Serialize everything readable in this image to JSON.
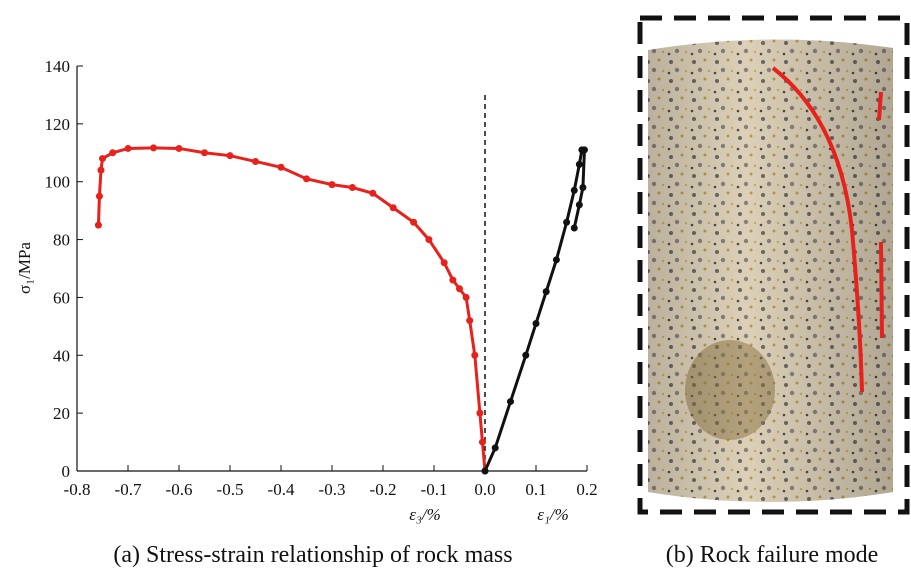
{
  "chart_data": {
    "type": "line",
    "ylabel": "σ₁/MPa",
    "xlabels": [
      "ε₃/%",
      "ε₁/%"
    ],
    "xlim": [
      -0.8,
      0.2
    ],
    "ylim": [
      0,
      140
    ],
    "xticks": [
      -0.8,
      -0.7,
      -0.6,
      -0.5,
      -0.4,
      -0.3,
      -0.2,
      -0.1,
      {
        "value": 0,
        "label": "0.0"
      },
      0.1,
      0.2
    ],
    "yticks": [
      0,
      20,
      40,
      60,
      80,
      100,
      120,
      140
    ],
    "series": [
      {
        "color": "#e8211c",
        "x": [
          0,
          -0.005,
          -0.01,
          -0.02,
          -0.03,
          -0.037,
          -0.05,
          -0.063,
          -0.08,
          -0.11,
          -0.14,
          -0.18,
          -0.22,
          -0.26,
          -0.3,
          -0.35,
          -0.4,
          -0.45,
          -0.5,
          -0.55,
          -0.6,
          -0.65,
          -0.7,
          -0.73,
          -0.75,
          -0.753,
          -0.756,
          -0.758
        ],
        "values": [
          0,
          10,
          20,
          40,
          52,
          60,
          63,
          66,
          72,
          80,
          86,
          91,
          96,
          98,
          99,
          101,
          105,
          107,
          109,
          110,
          111.5,
          111.7,
          111.5,
          110,
          108,
          104,
          95,
          85
        ]
      },
      {
        "color": "#111111",
        "x": [
          0,
          0.02,
          0.05,
          0.08,
          0.1,
          0.12,
          0.14,
          0.16,
          0.175,
          0.185,
          0.19,
          0.195,
          0.192,
          0.185,
          0.175
        ],
        "values": [
          0,
          8,
          24,
          40,
          51,
          62,
          73,
          86,
          97,
          106,
          111,
          111,
          98,
          92,
          84
        ]
      }
    ]
  },
  "captions": [
    "(a) Stress-strain relationship of rock mass",
    "(b) Rock failure mode"
  ]
}
